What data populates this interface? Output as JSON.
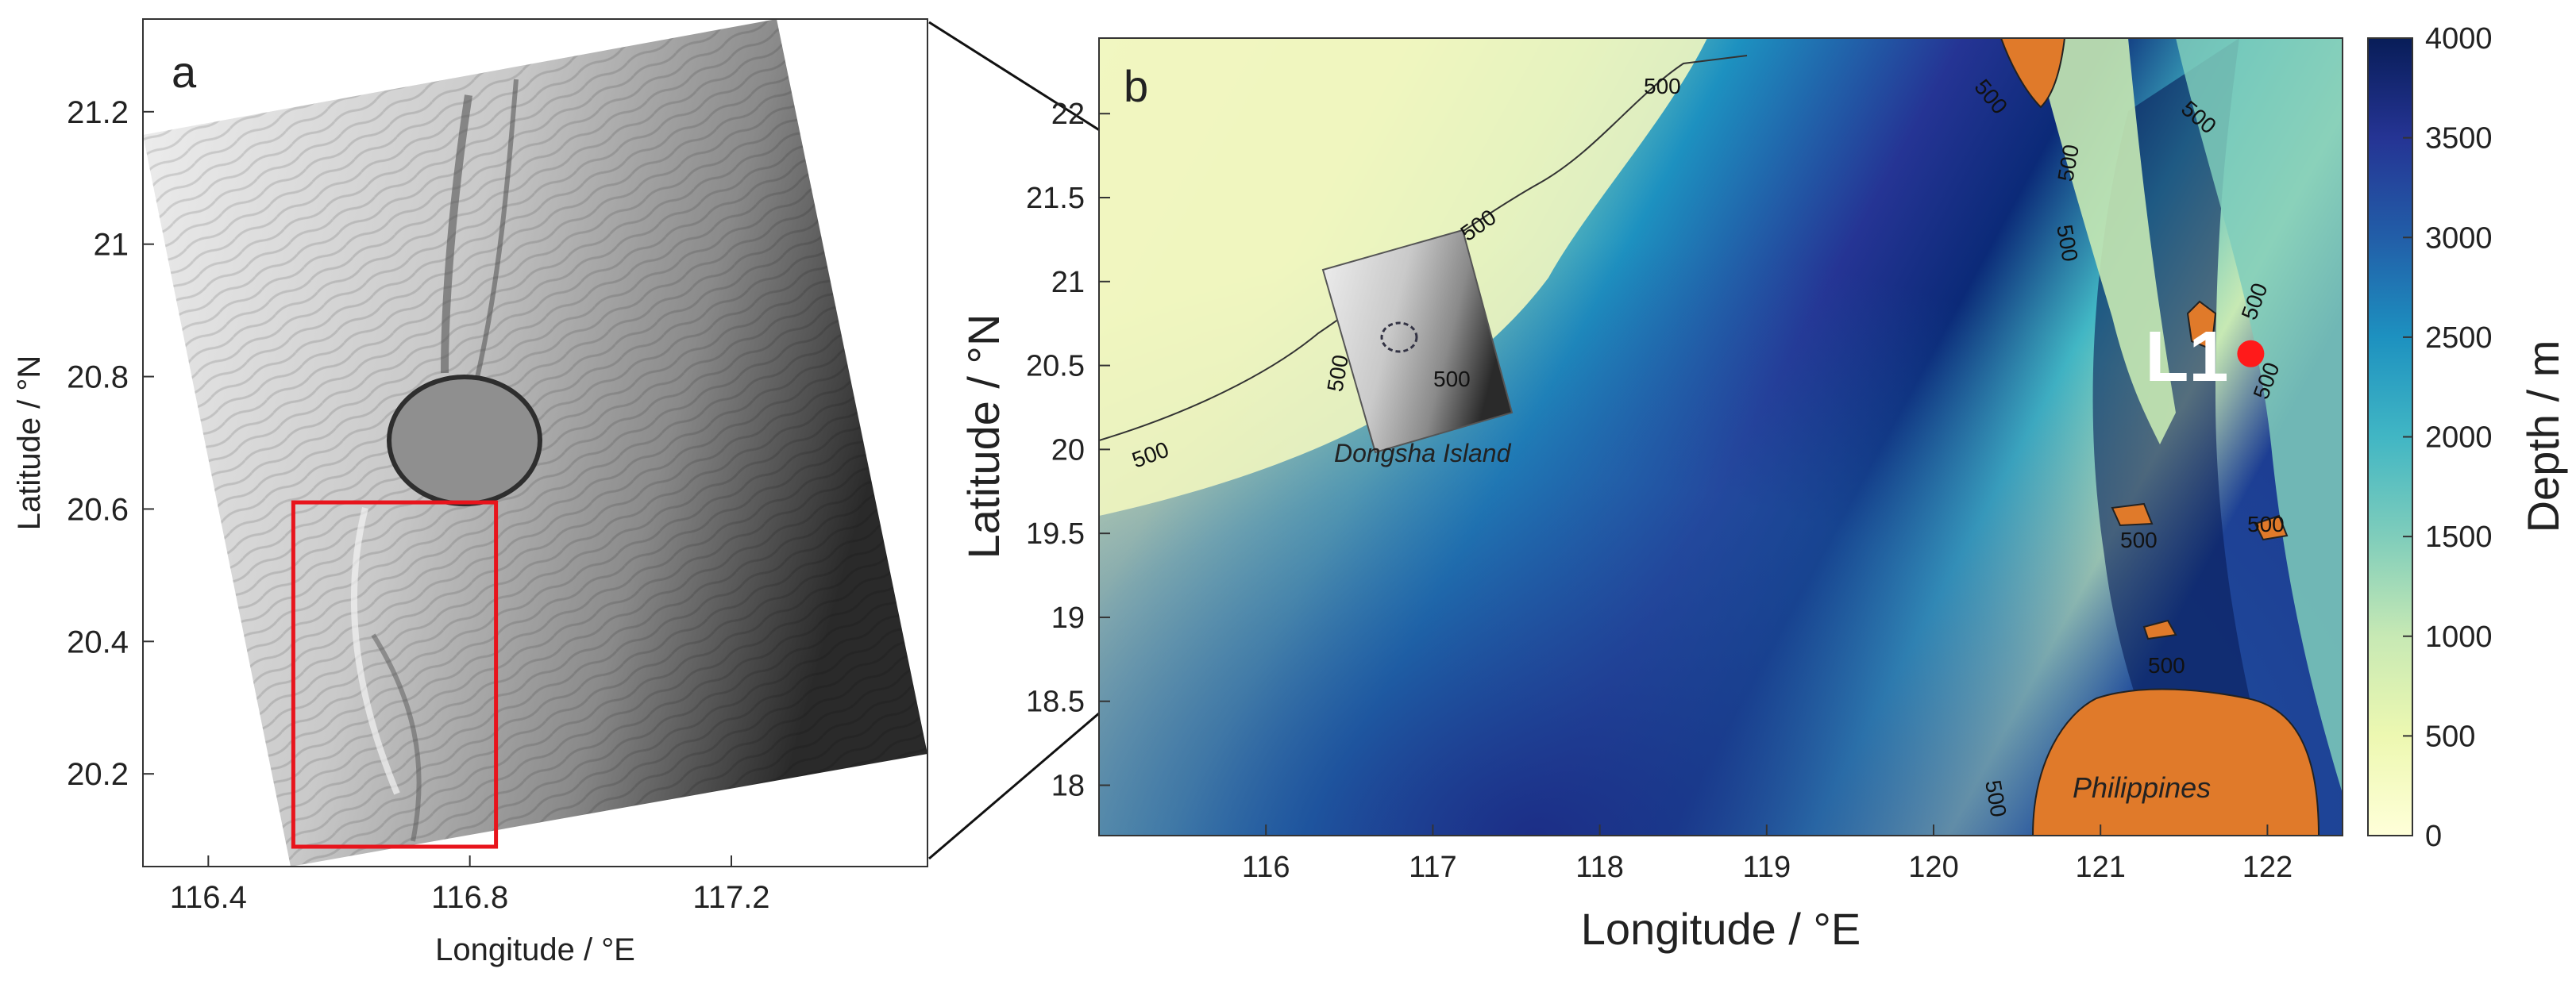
{
  "panel_a": {
    "letter": "a",
    "xlabel": "Longitude / °E",
    "ylabel": "Latitude / °N",
    "xticks": [
      116.4,
      116.8,
      117.2
    ],
    "yticks": [
      20.2,
      20.4,
      20.6,
      20.8,
      21,
      21.2
    ],
    "xlim": [
      116.3,
      117.5
    ],
    "ylim": [
      20.06,
      21.34
    ],
    "highlight_box": {
      "lon": [
        116.53,
        116.84
      ],
      "lat": [
        20.09,
        20.61
      ],
      "color": "#e8141c"
    }
  },
  "panel_b": {
    "letter": "b",
    "xlabel": "Longitude / °E",
    "ylabel": "Latitude / °N",
    "xticks": [
      116,
      117,
      118,
      119,
      120,
      121,
      122
    ],
    "yticks": [
      18,
      18.5,
      19,
      19.5,
      20,
      20.5,
      21,
      21.5,
      22
    ],
    "xlim": [
      115,
      122.45
    ],
    "ylim": [
      17.7,
      22.45
    ],
    "contour_labels": [
      "500",
      "500",
      "500",
      "500",
      "500",
      "500",
      "500",
      "500",
      "500",
      "500",
      "500",
      "500",
      "500",
      "500",
      "500"
    ],
    "place_labels": {
      "dongsha": "Dongsha Island",
      "philippines": "Philippines"
    },
    "station": {
      "name": "L1",
      "lon": 121.9,
      "lat": 20.57,
      "color": "#ff1a1a"
    },
    "land_color": "#e07a2a"
  },
  "colorbar": {
    "label": "Depth / m",
    "ticks": [
      0,
      500,
      1000,
      1500,
      2000,
      2500,
      3000,
      3500,
      4000
    ],
    "range": [
      0,
      4000
    ],
    "colors": [
      "#ffffd9",
      "#edf8b1",
      "#c7e9b4",
      "#7fcdbb",
      "#41b6c4",
      "#1d91c0",
      "#225ea8",
      "#253494",
      "#081d58"
    ]
  }
}
